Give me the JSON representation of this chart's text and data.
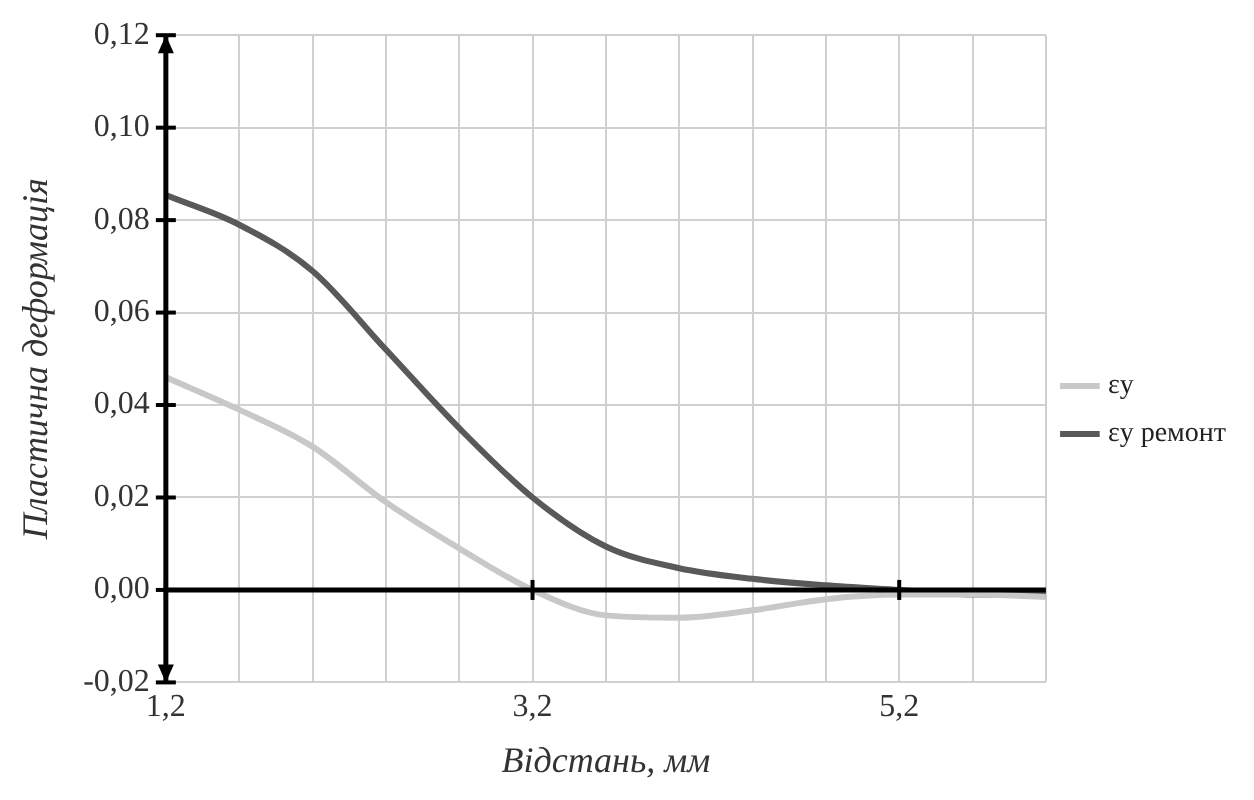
{
  "chart_data": {
    "type": "line",
    "xlabel": "Відстань, мм",
    "ylabel": "Пластична деформація",
    "x": [
      1.2,
      1.6,
      2.0,
      2.4,
      2.8,
      3.2,
      3.6,
      4.0,
      4.4,
      4.8,
      5.2,
      5.6,
      6.0
    ],
    "series": [
      {
        "name": "εy",
        "color": "#c8c8c8",
        "values": [
          0.046,
          0.039,
          0.031,
          0.019,
          0.009,
          0.0,
          -0.0055,
          -0.006,
          -0.0044,
          -0.002,
          -0.001,
          -0.001,
          -0.0015
        ]
      },
      {
        "name": "εy ремонт",
        "color": "#595959",
        "values": [
          0.0854,
          0.079,
          0.069,
          0.052,
          0.035,
          0.02,
          0.0094,
          0.0047,
          0.0024,
          0.001,
          0.0,
          -0.001,
          -0.001
        ]
      }
    ],
    "xlim": [
      1.2,
      6.0
    ],
    "xticks": [
      {
        "value": 1.2,
        "label": "1,2"
      },
      {
        "value": 1.6,
        "label": null
      },
      {
        "value": 2.0,
        "label": null
      },
      {
        "value": 2.4,
        "label": null
      },
      {
        "value": 2.8,
        "label": null
      },
      {
        "value": 3.2,
        "label": "3,2"
      },
      {
        "value": 3.6,
        "label": null
      },
      {
        "value": 4.0,
        "label": null
      },
      {
        "value": 4.4,
        "label": null
      },
      {
        "value": 4.8,
        "label": null
      },
      {
        "value": 5.2,
        "label": "5,2"
      },
      {
        "value": 5.6,
        "label": null
      },
      {
        "value": 6.0,
        "label": null
      }
    ],
    "ylim": [
      -0.02,
      0.12
    ],
    "yticks": [
      {
        "value": -0.02,
        "label": "-0,02"
      },
      {
        "value": 0,
        "label": "0,00"
      },
      {
        "value": 0.02,
        "label": "0,02"
      },
      {
        "value": 0.04,
        "label": "0,04"
      },
      {
        "value": 0.06,
        "label": "0,06"
      },
      {
        "value": 0.08,
        "label": "0,08"
      },
      {
        "value": 0.1,
        "label": "0,10"
      },
      {
        "value": 0.12,
        "label": "0,12"
      }
    ],
    "grid": true,
    "legend": "right",
    "marker": "none",
    "line_style": "solid"
  }
}
